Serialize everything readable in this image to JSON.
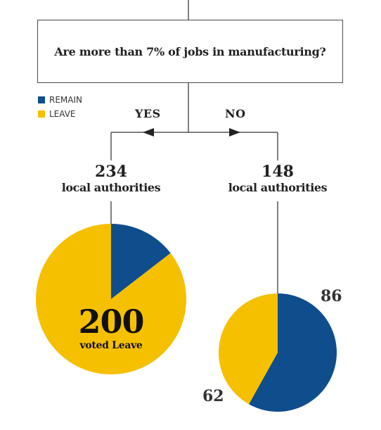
{
  "question": "Are more than 7% of jobs in manufacturing?",
  "legend": [
    {
      "label": "REMAIN",
      "color": "#0f4d8c"
    },
    {
      "label": "LEAVE",
      "color": "#f5c000"
    }
  ],
  "branches": {
    "yes": {
      "label": "YES",
      "count": "234",
      "unit": "local authorities",
      "leave": 200,
      "remain": 34,
      "center_value": "200",
      "center_text": "voted Leave"
    },
    "no": {
      "label": "NO",
      "count": "148",
      "unit": "local authorities",
      "remain": 86,
      "leave": 62,
      "remain_label": "86",
      "leave_label": "62"
    }
  },
  "colors": {
    "remain": "#0f4d8c",
    "leave": "#f5c000",
    "line": "#555555"
  }
}
